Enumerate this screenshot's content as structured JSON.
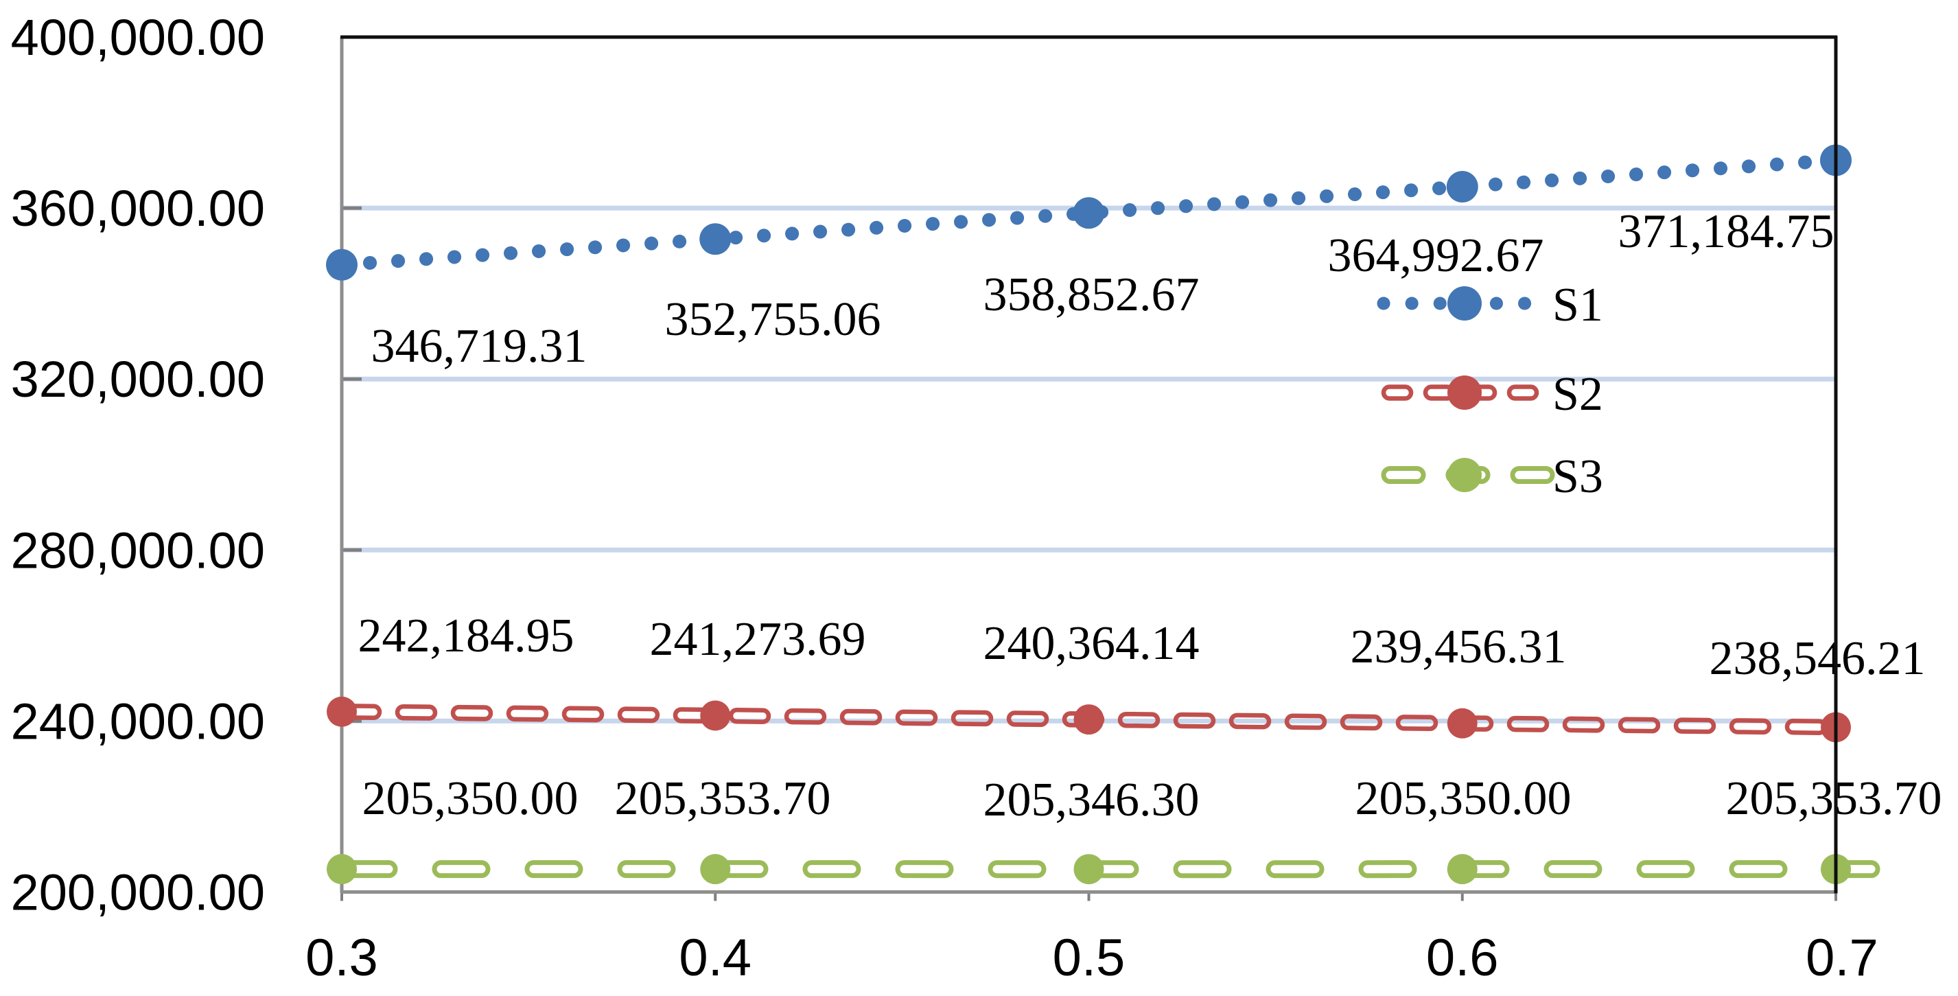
{
  "figure": {
    "background": "#FFFFFF"
  },
  "chart_data": {
    "type": "line",
    "title": "",
    "xlabel": "",
    "ylabel": "",
    "x_categories": [
      0.3,
      0.4,
      0.5,
      0.6,
      0.7
    ],
    "x_tick_labels": [
      "0.3",
      "0.4",
      "0.5",
      "0.6",
      "0.7"
    ],
    "y_axis": {
      "min": 200000,
      "max": 400000,
      "step": 40000,
      "tick_labels_top_to_bottom": [
        "400,000.00",
        "360,000.00",
        "320,000.00",
        "280,000.00",
        "240,000.00",
        "200,000.00"
      ]
    },
    "grid": true,
    "legend": {
      "position": "center-right",
      "entries": [
        "S1",
        "S2",
        "S3"
      ]
    },
    "series": [
      {
        "name": "S1",
        "color": "#4376B4",
        "marker": "circle",
        "line_style": "dotted",
        "values": [
          346719.31,
          352755.06,
          358852.67,
          364992.67,
          371184.75
        ],
        "data_labels": [
          "346,719.31",
          "352,755.06",
          "358,852.67",
          "364,992.67",
          "371,184.75"
        ],
        "data_label_position": "below"
      },
      {
        "name": "S2",
        "color": "#C0504D",
        "marker": "circle",
        "line_style": "dashed-hollow",
        "values": [
          242184.95,
          241273.69,
          240364.14,
          239456.31,
          238546.21
        ],
        "data_labels": [
          "242,184.95",
          "241,273.69",
          "240,364.14",
          "239,456.31",
          "238,546.21"
        ],
        "data_label_position": "above"
      },
      {
        "name": "S3",
        "color": "#9BBB59",
        "marker": "circle",
        "line_style": "dashed-hollow",
        "values": [
          205350.0,
          205353.7,
          205346.3,
          205350.0,
          205353.7
        ],
        "data_labels": [
          "205,350.00",
          "205,353.70",
          "205,346.30",
          "205,350.00",
          "205,353.70"
        ],
        "data_label_position": "above"
      }
    ],
    "colors": {
      "gridline": "#C8D6EC",
      "axis_gray": "#8E8E8E",
      "tick_gray": "#7F7F7F",
      "plot_border_dark": "#0F0F0F",
      "text": "#000000"
    }
  }
}
